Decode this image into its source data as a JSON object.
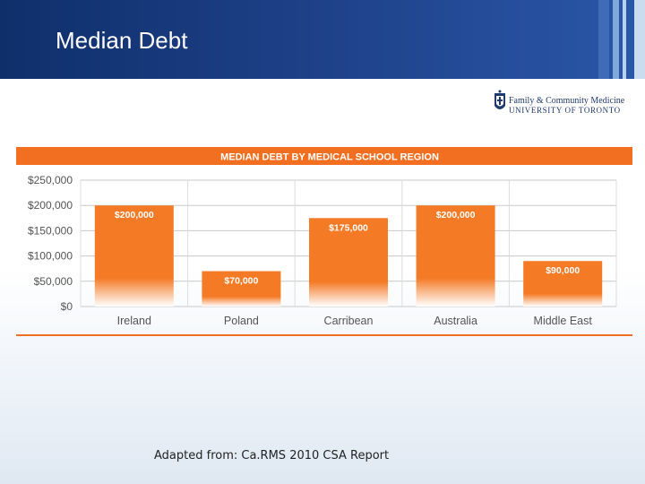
{
  "slide": {
    "title": "Median Debt",
    "source": "Adapted from:  Ca.RMS 2010 CSA Report"
  },
  "logo": {
    "line1": "Family & Community Medicine",
    "line2": "UNIVERSITY OF TORONTO"
  },
  "colors": {
    "header_dark": "#0f2f6b",
    "header_light": "#2a57a8",
    "accent_orange": "#f26f21",
    "bar_orange": "#f47a26"
  },
  "chart_data": {
    "type": "bar",
    "title": "MEDIAN DEBT BY MEDICAL SCHOOL REGION",
    "categories": [
      "Ireland",
      "Poland",
      "Carribean",
      "Australia",
      "Middle East"
    ],
    "values": [
      200000,
      70000,
      175000,
      200000,
      90000
    ],
    "data_labels": [
      "$200,000",
      "$70,000",
      "$175,000",
      "$200,000",
      "$90,000"
    ],
    "y_ticks": [
      0,
      50000,
      100000,
      150000,
      200000,
      250000
    ],
    "y_tick_labels": [
      "$0",
      "$50,000",
      "$100,000",
      "$150,000",
      "$200,000",
      "$250,000"
    ],
    "ylim": [
      0,
      250000
    ],
    "xlabel": "",
    "ylabel": "",
    "grid": true,
    "legend": "none"
  }
}
